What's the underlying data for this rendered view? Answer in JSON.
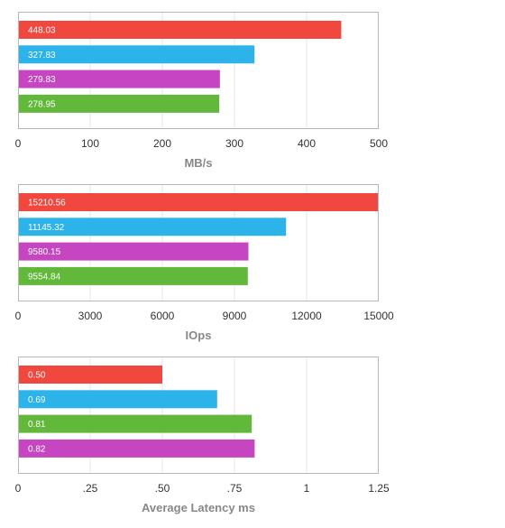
{
  "chart_data": [
    {
      "type": "bar",
      "orientation": "horizontal",
      "xlabel": "MB/s",
      "xlim": [
        0,
        500
      ],
      "ticks": [
        0,
        100,
        200,
        300,
        400,
        500
      ],
      "tick_labels": [
        "0",
        "100",
        "200",
        "300",
        "400",
        "500"
      ],
      "grid": true,
      "bars": [
        {
          "label": "448.03",
          "value": 448.03,
          "color": "#f0473f"
        },
        {
          "label": "327.83",
          "value": 327.83,
          "color": "#2bb3ea"
        },
        {
          "label": "279.83",
          "value": 279.83,
          "color": "#c645c0"
        },
        {
          "label": "278.95",
          "value": 278.95,
          "color": "#62b83a"
        }
      ]
    },
    {
      "type": "bar",
      "orientation": "horizontal",
      "xlabel": "IOps",
      "xlim": [
        0,
        15000
      ],
      "ticks": [
        0,
        3000,
        6000,
        9000,
        12000,
        15000
      ],
      "tick_labels": [
        "0",
        "3000",
        "6000",
        "9000",
        "12000",
        "15000"
      ],
      "grid": true,
      "bars": [
        {
          "label": "15210.56",
          "value": 15210.56,
          "color": "#f0473f"
        },
        {
          "label": "11145.32",
          "value": 11145.32,
          "color": "#2bb3ea"
        },
        {
          "label": "9580.15",
          "value": 9580.15,
          "color": "#c645c0"
        },
        {
          "label": "9554.84",
          "value": 9554.84,
          "color": "#62b83a"
        }
      ]
    },
    {
      "type": "bar",
      "orientation": "horizontal",
      "xlabel": "Average Latency ms",
      "xlim": [
        0,
        1.25
      ],
      "ticks": [
        0,
        0.25,
        0.5,
        0.75,
        1,
        1.25
      ],
      "tick_labels": [
        "0",
        ".25",
        ".50",
        ".75",
        "1",
        "1.25"
      ],
      "grid": true,
      "bars": [
        {
          "label": "0.50",
          "value": 0.5,
          "color": "#f0473f"
        },
        {
          "label": "0.69",
          "value": 0.69,
          "color": "#2bb3ea"
        },
        {
          "label": "0.81",
          "value": 0.81,
          "color": "#62b83a"
        },
        {
          "label": "0.82",
          "value": 0.82,
          "color": "#c645c0"
        }
      ]
    }
  ]
}
